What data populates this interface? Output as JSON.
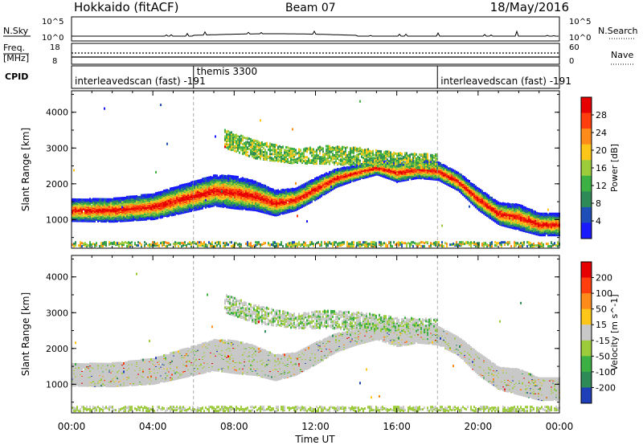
{
  "header": {
    "station": "Hokkaido (fitACF)",
    "beam": "Beam 07",
    "date": "18/May/2016"
  },
  "info_panels": {
    "nsky_label": "N.Sky",
    "nsky_ticks": [
      "10^5",
      "10^0"
    ],
    "nsearch_label": "N.Search",
    "freq_label_line1": "Freq.",
    "freq_label_line2": "[MHz]",
    "freq_ticks_left": [
      "18",
      "8"
    ],
    "freq_ticks_right": [
      "60",
      "0"
    ],
    "nave_label": "Nave",
    "cpid_label": "CPID",
    "cpid_segments": [
      {
        "label": "interleavedscan (fast) -191",
        "start_hour": 0
      },
      {
        "label": "themis 3300",
        "start_hour": 6
      },
      {
        "label": "interleavedscan (fast) -191",
        "start_hour": 18
      }
    ]
  },
  "chart_data": [
    {
      "type": "heatmap",
      "title": "",
      "parameter": "Power",
      "ylabel": "Slant Range [km]",
      "ylim": [
        200,
        4600
      ],
      "yticks": [
        1000,
        2000,
        3000,
        4000
      ],
      "xlim": [
        0,
        24
      ],
      "colorbar": {
        "label": "Power [dB]",
        "ticks": [
          4,
          8,
          12,
          16,
          20,
          24,
          28
        ],
        "range": [
          0,
          32
        ],
        "colors": [
          "#1a1aff",
          "#1e4fb8",
          "#2e8b57",
          "#3cb043",
          "#9ccc3c",
          "#ffc61a",
          "#ff8c1a",
          "#ff3d0d",
          "#e60000"
        ]
      },
      "echo_bands": [
        {
          "name": "main",
          "points": [
            [
              0,
              1300,
              300
            ],
            [
              2,
              1300,
              320
            ],
            [
              4,
              1400,
              350
            ],
            [
              5,
              1550,
              380
            ],
            [
              6,
              1700,
              400
            ],
            [
              7,
              1850,
              420
            ],
            [
              8,
              1800,
              450
            ],
            [
              9,
              1700,
              400
            ],
            [
              10,
              1500,
              350
            ],
            [
              11,
              1600,
              300
            ],
            [
              12,
              1900,
              300
            ],
            [
              13,
              2200,
              250
            ],
            [
              14,
              2350,
              200
            ],
            [
              15,
              2500,
              200
            ],
            [
              16,
              2350,
              250
            ],
            [
              17,
              2450,
              250
            ],
            [
              18,
              2400,
              250
            ],
            [
              19,
              2100,
              250
            ],
            [
              20,
              1600,
              300
            ],
            [
              21,
              1200,
              300
            ],
            [
              22,
              1100,
              350
            ],
            [
              23,
              900,
              300
            ],
            [
              24,
              900,
              300
            ]
          ]
        },
        {
          "name": "upper",
          "points": [
            [
              7.5,
              3300,
              250
            ],
            [
              9,
              3000,
              250
            ],
            [
              11,
              2800,
              200
            ],
            [
              12.5,
              2850,
              250
            ],
            [
              14,
              2800,
              250
            ],
            [
              16,
              2700,
              200
            ],
            [
              18,
              2650,
              200
            ]
          ]
        },
        {
          "name": "near",
          "points": [
            [
              0,
              300,
              100
            ],
            [
              24,
              300,
              100
            ]
          ]
        }
      ]
    },
    {
      "type": "heatmap",
      "title": "",
      "parameter": "Velocity",
      "ylabel": "Slant Range [km]",
      "ylim": [
        200,
        4600
      ],
      "yticks": [
        1000,
        2000,
        3000,
        4000
      ],
      "xlim": [
        0,
        24
      ],
      "xticks": [
        "00:00",
        "04:00",
        "08:00",
        "12:00",
        "16:00",
        "20:00",
        "00:00"
      ],
      "xlabel": "Time UT",
      "colorbar": {
        "label": "Velocity [m s^-1]",
        "tick_labels": [
          "200",
          "100",
          "50",
          "15",
          "-15",
          "-50",
          "-100",
          "-200"
        ],
        "colors": [
          "#1e3fb8",
          "#2e8b57",
          "#3cb043",
          "#9ccc3c",
          "#c8c8c8",
          "#ffc61a",
          "#ff8c1a",
          "#ff3d0d",
          "#e60000"
        ]
      }
    }
  ]
}
